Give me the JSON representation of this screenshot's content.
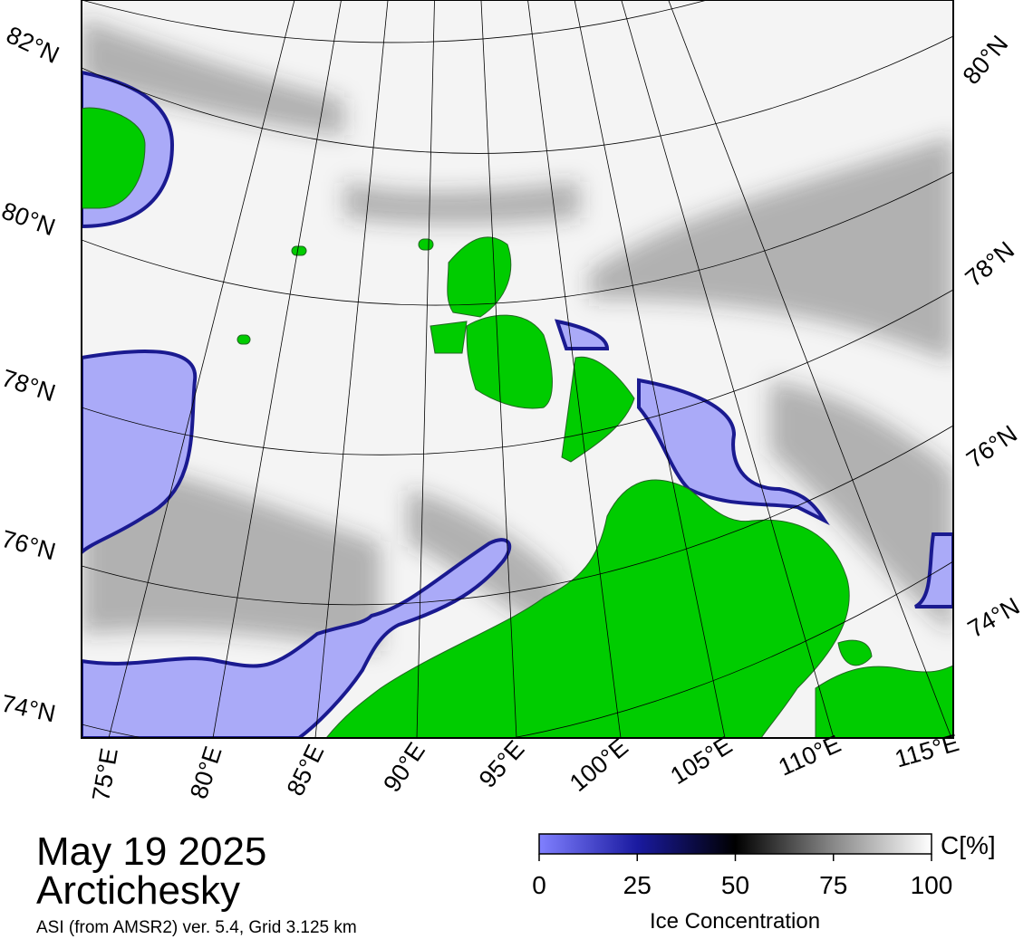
{
  "map": {
    "lat_labels_left": [
      "82°N",
      "80°N",
      "78°N",
      "76°N",
      "74°N"
    ],
    "lat_labels_right": [
      "80°N",
      "78°N",
      "76°N",
      "74°N"
    ],
    "lon_labels": [
      "75°E",
      "80°E",
      "85°E",
      "90°E",
      "95°E",
      "100°E",
      "105°E",
      "110°E",
      "115°E"
    ]
  },
  "footer": {
    "date": "May 19 2025",
    "region": "Arctichesky",
    "source": "ASI (from AMSR2) ver. 5.4,  Grid 3.125 km"
  },
  "colorbar": {
    "unit": "C[%]",
    "title": "Ice Concentration",
    "ticks": [
      0,
      25,
      50,
      75,
      100
    ]
  }
}
